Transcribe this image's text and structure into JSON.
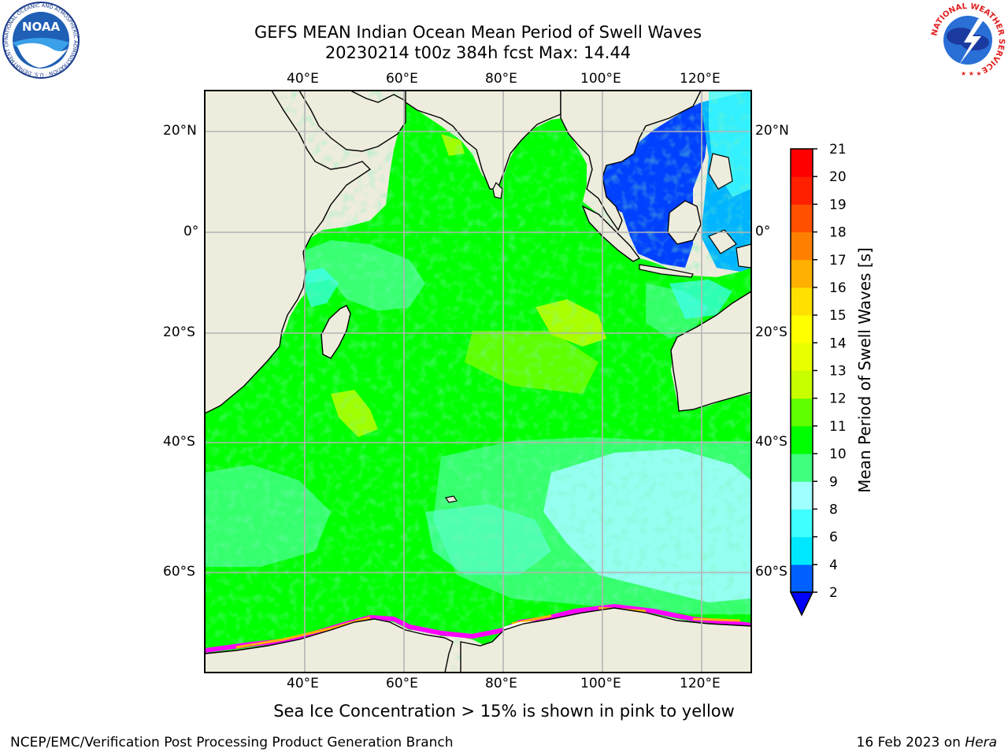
{
  "title": {
    "line1": "GEFS MEAN Indian Ocean Mean Period of Swell Waves",
    "line2": "20230214 t00z 384h fcst   Max: 14.44"
  },
  "axes": {
    "lon_labels": [
      "40°E",
      "60°E",
      "80°E",
      "100°E",
      "120°E"
    ],
    "lat_labels": [
      "20°N",
      "0°",
      "20°S",
      "40°S",
      "60°S"
    ]
  },
  "colorbar": {
    "label": "Mean Period of Swell Waves [s]",
    "ticks": [
      "2",
      "4",
      "6",
      "8",
      "9",
      "10",
      "11",
      "12",
      "13",
      "14",
      "15",
      "16",
      "17",
      "18",
      "19",
      "20",
      "21"
    ],
    "colors": [
      "#0060ff",
      "#00e8ff",
      "#40ffff",
      "#a0ffff",
      "#40ff80",
      "#00ff00",
      "#60ff00",
      "#c8ff00",
      "#e8ff00",
      "#ffff00",
      "#ffe000",
      "#ffb000",
      "#ff8000",
      "#ff5000",
      "#ff2000",
      "#ff0000"
    ],
    "extend_color": "#0000ff"
  },
  "map_colors": {
    "land": "#eeecdc",
    "ocean_main": "#00ff00",
    "grid": "#b4b4b4",
    "sea_ice": [
      "#ff00ff",
      "#ff80ff",
      "#ffb000",
      "#ffffff"
    ]
  },
  "caption": "Sea Ice Concentration > 15% is shown in pink to yellow",
  "credits": {
    "left": "NCEP/EMC/Verification Post Processing Product Generation Branch",
    "right_prefix": "16 Feb 2023 on ",
    "right_system": "Hera"
  },
  "logos": {
    "noaa_text": "NOAA",
    "noaa_ring": "NATIONAL OCEANIC AND ATMOSPHERIC ADMINISTRATION · U.S. DEPARTMENT OF COMMERCE",
    "nws_ring": "NATIONAL WEATHER SERVICE"
  }
}
